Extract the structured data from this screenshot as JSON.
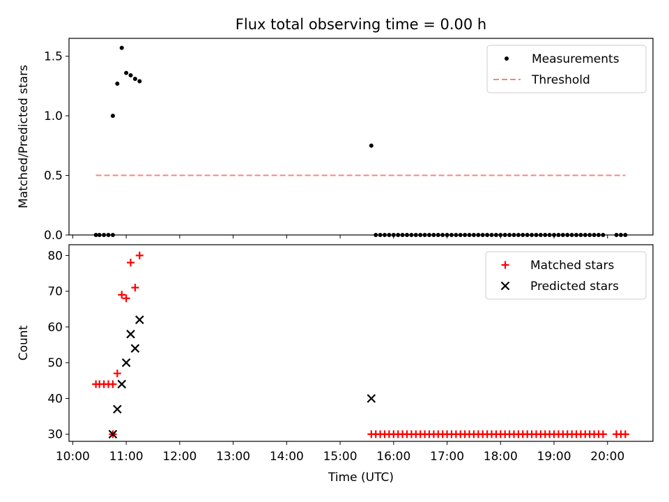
{
  "chart_data": {
    "title": "Flux total observing time = 0.00 h",
    "xlabel": "Time (UTC)",
    "xticks": [
      "10:00",
      "11:00",
      "12:00",
      "13:00",
      "14:00",
      "15:00",
      "16:00",
      "17:00",
      "18:00",
      "19:00",
      "20:00"
    ],
    "xlim_hours": [
      9.93,
      20.85
    ],
    "panels": [
      {
        "type": "scatter",
        "ylabel": "Matched/Predicted stars",
        "ylim": [
          0,
          1.65
        ],
        "yticks": [
          "0.0",
          "0.5",
          "1.0",
          "1.5"
        ],
        "legend_position": "top-right",
        "series": [
          {
            "name": "Measurements",
            "marker": "dot",
            "color": "#000000",
            "points": [
              [
                "10:26",
                0.0
              ],
              [
                "10:30",
                0.0
              ],
              [
                "10:35",
                0.0
              ],
              [
                "10:40",
                0.0
              ],
              [
                "10:45",
                0.0
              ],
              [
                "10:45",
                1.0
              ],
              [
                "10:50",
                1.27
              ],
              [
                "10:55",
                1.57
              ],
              [
                "11:00",
                1.36
              ],
              [
                "11:05",
                1.34
              ],
              [
                "11:10",
                1.31
              ],
              [
                "11:15",
                1.29
              ],
              [
                "15:35",
                0.75
              ],
              [
                "15:40",
                0.0
              ],
              [
                "15:45",
                0.0
              ],
              [
                "15:50",
                0.0
              ],
              [
                "15:55",
                0.0
              ],
              [
                "16:00",
                0.0
              ],
              [
                "16:05",
                0.0
              ],
              [
                "16:10",
                0.0
              ],
              [
                "16:15",
                0.0
              ],
              [
                "16:20",
                0.0
              ],
              [
                "16:25",
                0.0
              ],
              [
                "16:30",
                0.0
              ],
              [
                "16:35",
                0.0
              ],
              [
                "16:40",
                0.0
              ],
              [
                "16:45",
                0.0
              ],
              [
                "16:50",
                0.0
              ],
              [
                "16:55",
                0.0
              ],
              [
                "17:00",
                0.0
              ],
              [
                "17:05",
                0.0
              ],
              [
                "17:10",
                0.0
              ],
              [
                "17:15",
                0.0
              ],
              [
                "17:20",
                0.0
              ],
              [
                "17:25",
                0.0
              ],
              [
                "17:30",
                0.0
              ],
              [
                "17:35",
                0.0
              ],
              [
                "17:40",
                0.0
              ],
              [
                "17:45",
                0.0
              ],
              [
                "17:50",
                0.0
              ],
              [
                "17:55",
                0.0
              ],
              [
                "18:00",
                0.0
              ],
              [
                "18:05",
                0.0
              ],
              [
                "18:10",
                0.0
              ],
              [
                "18:15",
                0.0
              ],
              [
                "18:20",
                0.0
              ],
              [
                "18:25",
                0.0
              ],
              [
                "18:30",
                0.0
              ],
              [
                "18:35",
                0.0
              ],
              [
                "18:40",
                0.0
              ],
              [
                "18:45",
                0.0
              ],
              [
                "18:50",
                0.0
              ],
              [
                "18:55",
                0.0
              ],
              [
                "19:00",
                0.0
              ],
              [
                "19:05",
                0.0
              ],
              [
                "19:10",
                0.0
              ],
              [
                "19:15",
                0.0
              ],
              [
                "19:20",
                0.0
              ],
              [
                "19:25",
                0.0
              ],
              [
                "19:30",
                0.0
              ],
              [
                "19:35",
                0.0
              ],
              [
                "19:40",
                0.0
              ],
              [
                "19:45",
                0.0
              ],
              [
                "19:50",
                0.0
              ],
              [
                "19:55",
                0.0
              ],
              [
                "20:10",
                0.0
              ],
              [
                "20:15",
                0.0
              ],
              [
                "20:20",
                0.0
              ]
            ]
          },
          {
            "name": "Threshold",
            "type": "line",
            "style": "dashed",
            "color": "#ff8080",
            "points": [
              [
                "10:26",
                0.5
              ],
              [
                "20:20",
                0.5
              ]
            ]
          }
        ]
      },
      {
        "type": "scatter",
        "ylabel": "Count",
        "ylim": [
          28,
          83
        ],
        "yticks": [
          "30",
          "40",
          "50",
          "60",
          "70",
          "80"
        ],
        "legend_position": "top-right",
        "series": [
          {
            "name": "Matched stars",
            "marker": "plus",
            "color": "#ff0000",
            "points": [
              [
                "10:26",
                44
              ],
              [
                "10:30",
                44
              ],
              [
                "10:35",
                44
              ],
              [
                "10:40",
                44
              ],
              [
                "10:45",
                44
              ],
              [
                "10:45",
                30
              ],
              [
                "10:50",
                47
              ],
              [
                "10:55",
                69
              ],
              [
                "11:00",
                68
              ],
              [
                "11:05",
                78
              ],
              [
                "11:10",
                71
              ],
              [
                "11:15",
                80
              ],
              [
                "15:35",
                30
              ],
              [
                "15:40",
                30
              ],
              [
                "15:45",
                30
              ],
              [
                "15:50",
                30
              ],
              [
                "15:55",
                30
              ],
              [
                "16:00",
                30
              ],
              [
                "16:05",
                30
              ],
              [
                "16:10",
                30
              ],
              [
                "16:15",
                30
              ],
              [
                "16:20",
                30
              ],
              [
                "16:25",
                30
              ],
              [
                "16:30",
                30
              ],
              [
                "16:35",
                30
              ],
              [
                "16:40",
                30
              ],
              [
                "16:45",
                30
              ],
              [
                "16:50",
                30
              ],
              [
                "16:55",
                30
              ],
              [
                "17:00",
                30
              ],
              [
                "17:05",
                30
              ],
              [
                "17:10",
                30
              ],
              [
                "17:15",
                30
              ],
              [
                "17:20",
                30
              ],
              [
                "17:25",
                30
              ],
              [
                "17:30",
                30
              ],
              [
                "17:35",
                30
              ],
              [
                "17:40",
                30
              ],
              [
                "17:45",
                30
              ],
              [
                "17:50",
                30
              ],
              [
                "17:55",
                30
              ],
              [
                "18:00",
                30
              ],
              [
                "18:05",
                30
              ],
              [
                "18:10",
                30
              ],
              [
                "18:15",
                30
              ],
              [
                "18:20",
                30
              ],
              [
                "18:25",
                30
              ],
              [
                "18:30",
                30
              ],
              [
                "18:35",
                30
              ],
              [
                "18:40",
                30
              ],
              [
                "18:45",
                30
              ],
              [
                "18:50",
                30
              ],
              [
                "18:55",
                30
              ],
              [
                "19:00",
                30
              ],
              [
                "19:05",
                30
              ],
              [
                "19:10",
                30
              ],
              [
                "19:15",
                30
              ],
              [
                "19:20",
                30
              ],
              [
                "19:25",
                30
              ],
              [
                "19:30",
                30
              ],
              [
                "19:35",
                30
              ],
              [
                "19:40",
                30
              ],
              [
                "19:45",
                30
              ],
              [
                "19:50",
                30
              ],
              [
                "19:55",
                30
              ],
              [
                "20:10",
                30
              ],
              [
                "20:15",
                30
              ],
              [
                "20:20",
                30
              ]
            ]
          },
          {
            "name": "Predicted stars",
            "marker": "x",
            "color": "#000000",
            "points": [
              [
                "10:45",
                30
              ],
              [
                "10:50",
                37
              ],
              [
                "10:55",
                44
              ],
              [
                "11:00",
                50
              ],
              [
                "11:05",
                58
              ],
              [
                "11:10",
                54
              ],
              [
                "11:15",
                62
              ],
              [
                "15:35",
                40
              ]
            ]
          }
        ]
      }
    ]
  }
}
